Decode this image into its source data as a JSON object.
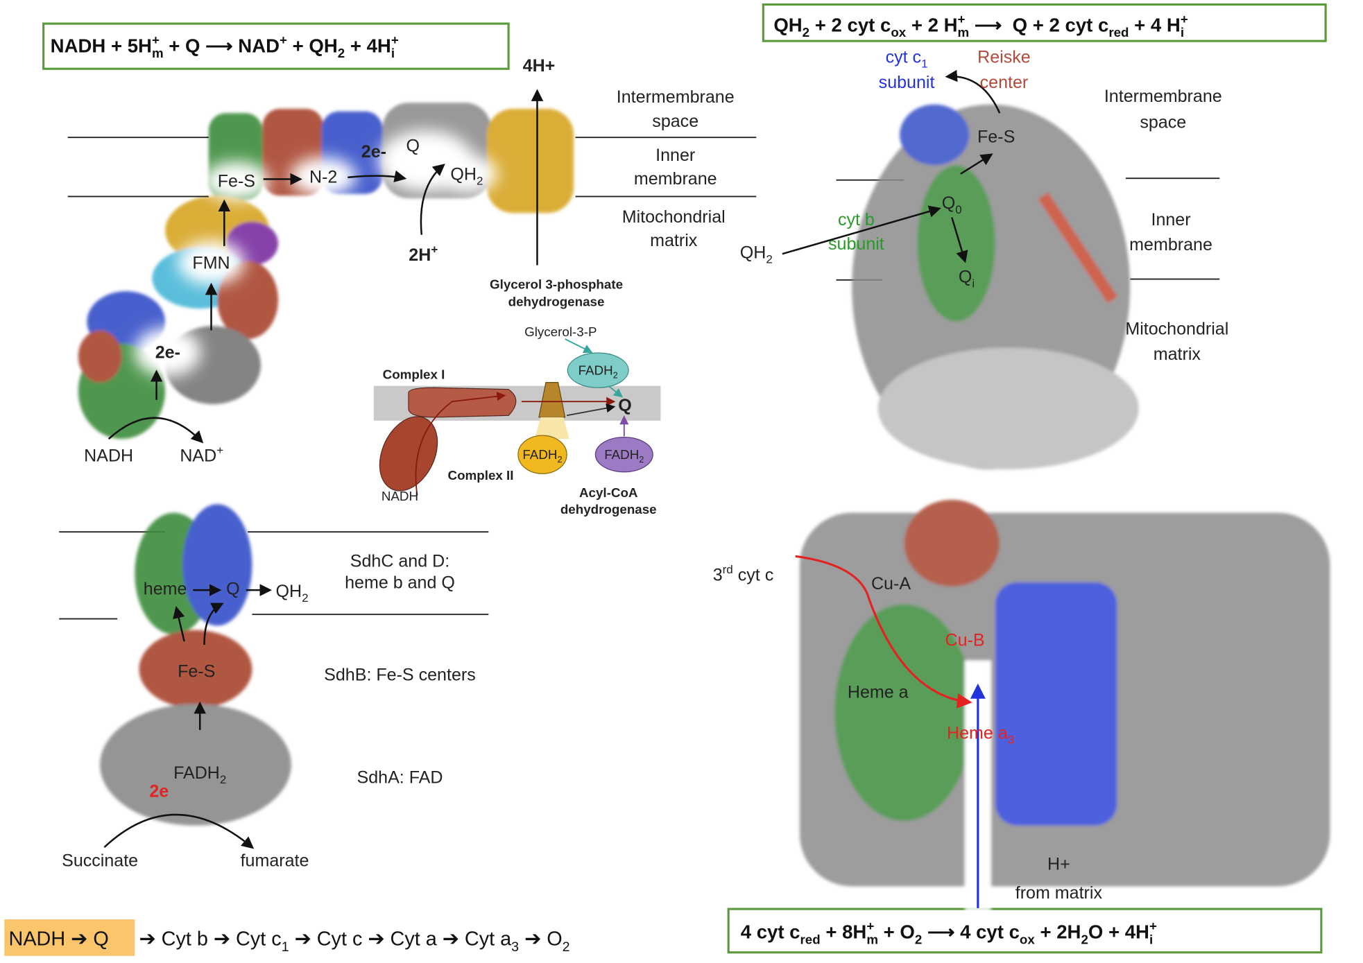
{
  "equations": [
    [
      "NADH + 5H",
      {
        "sup": "+"
      },
      {
        "sub": "m"
      },
      " + Q ⟶ NAD",
      {
        "sup": "+"
      },
      " + QH",
      {
        "sub": "2"
      },
      " + 4H",
      {
        "sup": "+"
      },
      {
        "sub": "i"
      }
    ],
    [
      "QH",
      {
        "sub": "2"
      },
      " + 2 cyt c",
      {
        "sub": "ox"
      },
      " + 2 H",
      {
        "sup": "+"
      },
      {
        "sub": "m"
      },
      " ⟶  Q + 2 cyt c",
      {
        "sub": "red"
      },
      " + 4 H",
      {
        "sup": "+"
      },
      {
        "sub": "i"
      }
    ],
    [
      "4 cyt c",
      {
        "sub": "red"
      },
      " + 8H",
      {
        "sup": "+"
      },
      {
        "sub": "m"
      },
      " + O",
      {
        "sub": "2"
      },
      " ⟶ 4 cyt c",
      {
        "sub": "ox"
      },
      " + 2H",
      {
        "sub": "2"
      },
      "O + 4H",
      {
        "sup": "+"
      },
      {
        "sub": "i"
      }
    ]
  ],
  "respiratory_chain": [
    "NADH ➔ Q",
    [
      "➔ Cyt b ➔ Cyt c",
      {
        "sub": "1"
      },
      " ➔ Cyt c ➔ Cyt a ➔ Cyt a",
      {
        "sub": "3"
      },
      " ➔ O",
      {
        "sub": "2"
      }
    ]
  ],
  "complex_i": [
    "4H+",
    "Intermembrane",
    "space",
    "Inner",
    "membrane",
    "Mitochondrial",
    "matrix",
    "Fe-S",
    "N-2",
    "2e-",
    "Q",
    [
      "QH",
      {
        "sub": "2"
      }
    ],
    [
      "2H",
      {
        "sup": "+"
      }
    ],
    "FMN",
    "2e-",
    "NADH",
    [
      "NAD",
      {
        "sup": "+"
      }
    ],
    "Glycerol 3-phosphate",
    "dehydrogenase"
  ],
  "pathways": [
    "Glycerol-3-P",
    "Complex I",
    [
      "FADH",
      {
        "sub": "2"
      }
    ],
    "Q",
    [
      "FADH",
      {
        "sub": "2"
      }
    ],
    [
      "FADH",
      {
        "sub": "2"
      }
    ],
    "NADH",
    "Complex II",
    "Acyl-CoA",
    "dehydrogenase"
  ],
  "complex_ii": [
    "SdhC and D:",
    "heme b and Q",
    "heme",
    "Q",
    [
      "QH",
      {
        "sub": "2"
      }
    ],
    "Fe-S",
    "SdhB: Fe-S centers",
    [
      "FADH",
      {
        "sub": "2"
      }
    ],
    "2e",
    "SdhA: FAD",
    "Succinate",
    "fumarate"
  ],
  "complex_iii": [
    [
      "cyt c",
      {
        "sub": "1"
      }
    ],
    "subunit",
    "Reiske",
    "center",
    "Intermembrane",
    "space",
    "Fe-S",
    [
      "Q",
      {
        "sub": "0"
      }
    ],
    "cyt b",
    "subunit",
    [
      "QH",
      {
        "sub": "2"
      }
    ],
    [
      "Q",
      {
        "sub": "i"
      }
    ],
    "Inner",
    "membrane",
    "Mitochondrial",
    "matrix"
  ],
  "complex_iv": [
    [
      "3",
      {
        "sup": "rd"
      },
      " cyt c"
    ],
    "Cu-A",
    "Cu-B",
    "Heme a",
    [
      "Heme a",
      {
        "sub": "3"
      }
    ],
    "H+",
    "from matrix"
  ]
}
